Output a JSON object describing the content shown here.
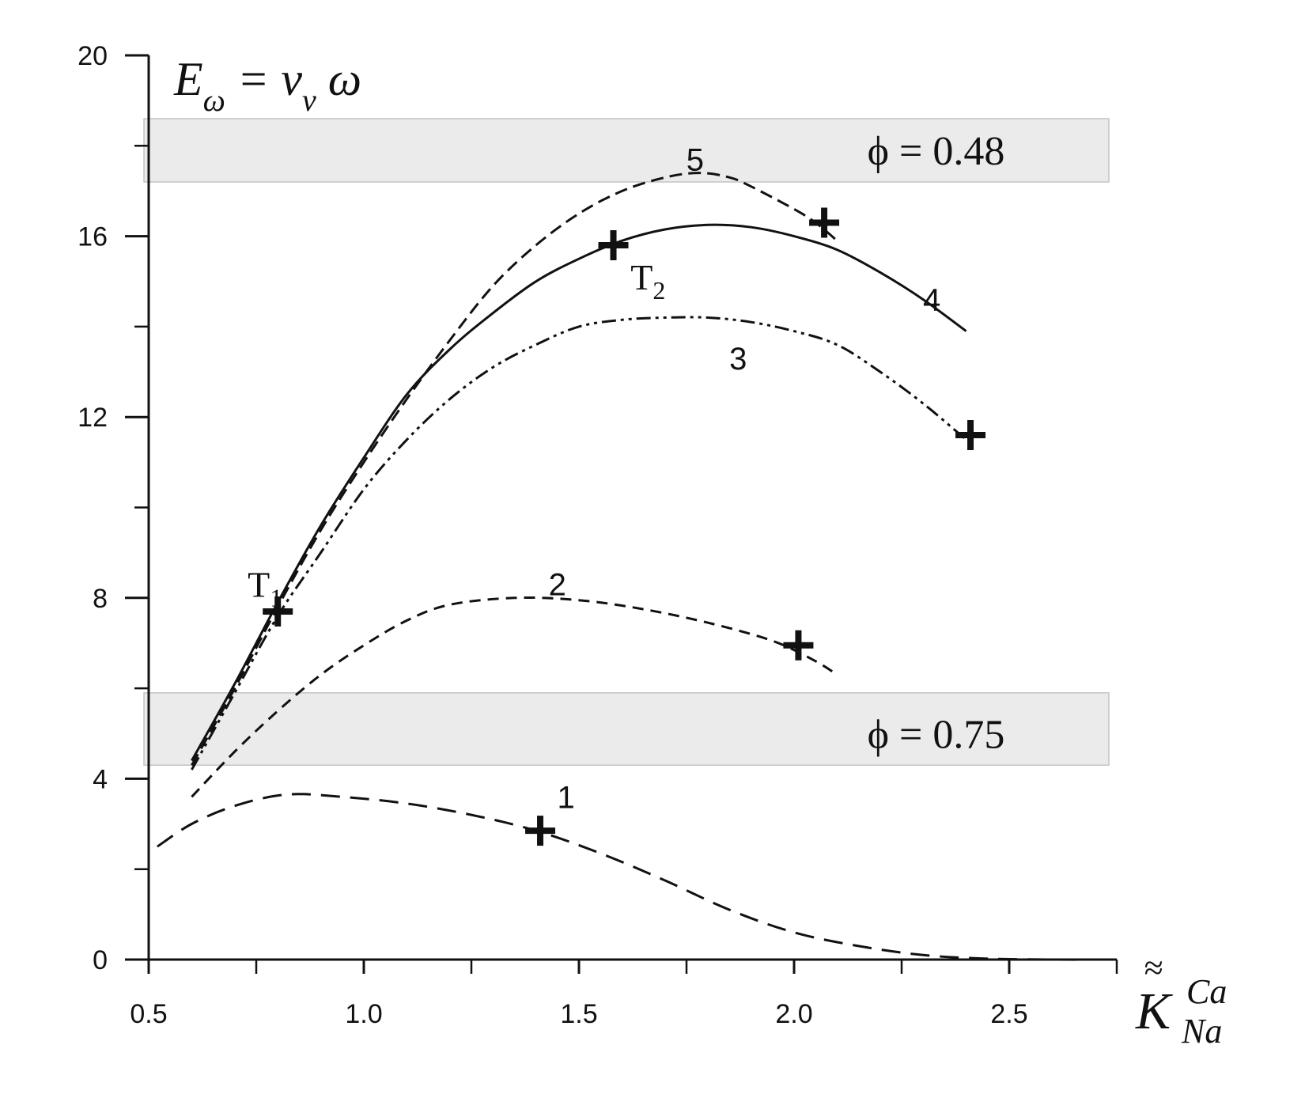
{
  "chart_data": {
    "type": "line",
    "title": "E_ω = v_v ω",
    "title_parts": {
      "main": "E",
      "sub1": "ω",
      "mid": " = v",
      "sub2": "v",
      "tail": " ω"
    },
    "xlabel": "K̃̃ Ca Na",
    "xlabel_parts": {
      "main": "K",
      "accent": "≈",
      "super": "Ca",
      "sub": "Na"
    },
    "ylabel": "",
    "xlim": [
      0.5,
      2.75
    ],
    "ylim": [
      0,
      20
    ],
    "x_ticks": [
      0.5,
      1.0,
      1.5,
      2.0,
      2.5
    ],
    "x_tick_labels": [
      "0.5",
      "1.0",
      "1.5",
      "2.0",
      "2.5"
    ],
    "x_minor_ticks": [
      0.75,
      1.25,
      1.75,
      2.25,
      2.75
    ],
    "y_ticks": [
      0,
      4,
      8,
      12,
      16,
      20
    ],
    "y_tick_labels": [
      "0",
      "4",
      "8",
      "12",
      "16",
      "20"
    ],
    "y_minor_ticks": [
      2,
      6,
      10,
      14,
      18
    ],
    "grid": false,
    "bands": [
      {
        "label": "ϕ = 0.48",
        "y_range": [
          17.2,
          18.6
        ],
        "label_x": 2.33,
        "label_y": 17.9
      },
      {
        "label": "ϕ = 0.75",
        "y_range": [
          4.3,
          5.9
        ],
        "label_x": 2.33,
        "label_y": 5.0
      }
    ],
    "series": [
      {
        "name": "1",
        "dash": "24,13",
        "label_pos": [
          1.47,
          3.6
        ],
        "x": [
          0.52,
          0.6,
          0.7,
          0.82,
          0.95,
          1.1,
          1.25,
          1.4,
          1.55,
          1.7,
          1.85,
          2.0,
          2.15,
          2.3,
          2.45,
          2.6,
          2.7
        ],
        "y": [
          2.5,
          3.0,
          3.4,
          3.65,
          3.6,
          3.45,
          3.2,
          2.85,
          2.35,
          1.75,
          1.1,
          0.6,
          0.3,
          0.1,
          0.02,
          0.0,
          0.0
        ]
      },
      {
        "name": "2",
        "dash": "14,9",
        "label_pos": [
          1.45,
          8.3
        ],
        "x": [
          0.6,
          0.7,
          0.8,
          0.9,
          1.0,
          1.1,
          1.2,
          1.35,
          1.5,
          1.65,
          1.8,
          1.95,
          2.05,
          2.1
        ],
        "y": [
          3.6,
          4.6,
          5.5,
          6.3,
          6.95,
          7.5,
          7.85,
          8.0,
          7.95,
          7.75,
          7.45,
          7.05,
          6.6,
          6.3
        ]
      },
      {
        "name": "3",
        "dash": "18,6,4,6,4,6",
        "label_pos": [
          1.87,
          13.3
        ],
        "x": [
          0.6,
          0.7,
          0.8,
          0.9,
          1.0,
          1.1,
          1.2,
          1.3,
          1.4,
          1.5,
          1.6,
          1.7,
          1.8,
          1.9,
          2.0,
          2.1,
          2.2,
          2.3,
          2.4
        ],
        "y": [
          4.2,
          5.9,
          7.6,
          9.0,
          10.4,
          11.5,
          12.4,
          13.1,
          13.6,
          14.0,
          14.15,
          14.2,
          14.2,
          14.1,
          13.9,
          13.6,
          13.0,
          12.3,
          11.5
        ]
      },
      {
        "name": "4",
        "dash": "",
        "label_pos": [
          2.32,
          14.6
        ],
        "x": [
          0.6,
          0.7,
          0.8,
          0.9,
          1.0,
          1.1,
          1.2,
          1.3,
          1.4,
          1.5,
          1.6,
          1.7,
          1.8,
          1.9,
          2.0,
          2.1,
          2.2,
          2.3,
          2.4
        ],
        "y": [
          4.4,
          6.1,
          7.9,
          9.6,
          11.1,
          12.5,
          13.5,
          14.3,
          15.0,
          15.5,
          15.9,
          16.15,
          16.25,
          16.2,
          16.0,
          15.7,
          15.2,
          14.6,
          13.9
        ]
      },
      {
        "name": "5",
        "dash": "16,8",
        "label_pos": [
          1.77,
          17.7
        ],
        "x": [
          0.6,
          0.7,
          0.8,
          0.9,
          1.0,
          1.1,
          1.2,
          1.3,
          1.4,
          1.5,
          1.6,
          1.7,
          1.78,
          1.85,
          1.9,
          2.0,
          2.05,
          2.1
        ],
        "y": [
          4.3,
          6.0,
          7.8,
          9.5,
          11.0,
          12.4,
          13.7,
          14.9,
          15.8,
          16.5,
          17.0,
          17.3,
          17.4,
          17.3,
          17.1,
          16.6,
          16.3,
          15.9
        ]
      }
    ],
    "markers": [
      {
        "x": 0.8,
        "y": 7.7,
        "label": "T",
        "sub": "1",
        "label_pos": [
          0.73,
          8.3
        ]
      },
      {
        "x": 1.58,
        "y": 15.8,
        "label": "T",
        "sub": "2",
        "label_pos": [
          1.62,
          15.1
        ]
      },
      {
        "x": 2.07,
        "y": 16.3
      },
      {
        "x": 2.41,
        "y": 11.6
      },
      {
        "x": 2.01,
        "y": 6.95
      },
      {
        "x": 1.41,
        "y": 2.85
      }
    ]
  }
}
